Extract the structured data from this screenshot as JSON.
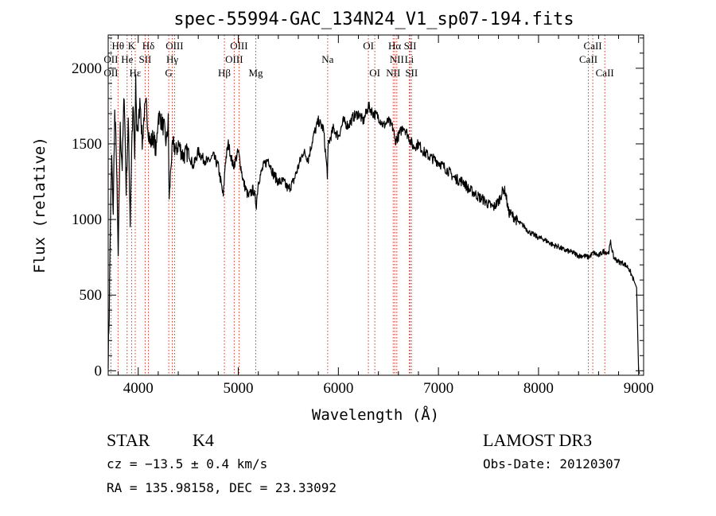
{
  "chart_data": {
    "type": "line",
    "title": "spec-55994-GAC_134N24_V1_sp07-194.fits",
    "xlabel": "Wavelength (Å)",
    "ylabel": "Flux (relative)",
    "xlim": [
      3700,
      9050
    ],
    "ylim": [
      -30,
      2220
    ],
    "x_ticks": [
      4000,
      5000,
      6000,
      7000,
      8000,
      9000
    ],
    "y_ticks": [
      0,
      500,
      1000,
      1500,
      2000
    ],
    "series": [
      {
        "name": "flux",
        "color": "#000000",
        "x": [
          3700,
          3710,
          3720,
          3735,
          3750,
          3765,
          3780,
          3800,
          3820,
          3840,
          3860,
          3880,
          3900,
          3920,
          3935,
          3950,
          3965,
          3975,
          3985,
          4000,
          4020,
          4040,
          4060,
          4080,
          4100,
          4120,
          4150,
          4180,
          4200,
          4230,
          4260,
          4280,
          4300,
          4310,
          4330,
          4350,
          4380,
          4400,
          4450,
          4500,
          4550,
          4600,
          4650,
          4700,
          4750,
          4800,
          4850,
          4870,
          4900,
          4950,
          5000,
          5050,
          5100,
          5150,
          5180,
          5200,
          5250,
          5300,
          5350,
          5400,
          5450,
          5500,
          5550,
          5600,
          5650,
          5700,
          5750,
          5800,
          5850,
          5890,
          5900,
          5950,
          6000,
          6050,
          6100,
          6150,
          6200,
          6250,
          6300,
          6350,
          6400,
          6450,
          6500,
          6550,
          6563,
          6600,
          6650,
          6700,
          6750,
          6800,
          6850,
          6900,
          6950,
          7000,
          7050,
          7100,
          7150,
          7200,
          7250,
          7300,
          7350,
          7400,
          7450,
          7500,
          7550,
          7600,
          7650,
          7670,
          7700,
          7750,
          7800,
          7850,
          7900,
          7950,
          8000,
          8050,
          8100,
          8150,
          8200,
          8250,
          8300,
          8350,
          8400,
          8450,
          8500,
          8550,
          8600,
          8650,
          8700,
          8720,
          8750,
          8800,
          8850,
          8900,
          8950,
          8980,
          9000,
          9010
        ],
        "y": [
          80,
          380,
          900,
          1400,
          1050,
          1700,
          1480,
          750,
          1600,
          1350,
          1850,
          1200,
          1650,
          980,
          1500,
          1750,
          1400,
          1900,
          1620,
          1600,
          1800,
          1500,
          1700,
          1750,
          1600,
          1500,
          1550,
          1450,
          1700,
          1650,
          1600,
          1500,
          1650,
          1120,
          1400,
          1500,
          1450,
          1500,
          1420,
          1450,
          1350,
          1450,
          1400,
          1380,
          1420,
          1350,
          1150,
          1380,
          1500,
          1350,
          1450,
          1250,
          1150,
          1200,
          1100,
          1250,
          1350,
          1400,
          1300,
          1250,
          1250,
          1200,
          1250,
          1350,
          1450,
          1400,
          1550,
          1650,
          1600,
          1300,
          1500,
          1600,
          1550,
          1650,
          1620,
          1680,
          1700,
          1650,
          1750,
          1700,
          1680,
          1620,
          1650,
          1600,
          1520,
          1550,
          1620,
          1550,
          1480,
          1500,
          1450,
          1420,
          1400,
          1380,
          1350,
          1320,
          1280,
          1260,
          1250,
          1200,
          1180,
          1150,
          1130,
          1100,
          1080,
          1120,
          1200,
          1180,
          1050,
          1020,
          980,
          960,
          920,
          900,
          880,
          870,
          850,
          830,
          820,
          800,
          790,
          780,
          760,
          760,
          750,
          780,
          760,
          790,
          780,
          850,
          750,
          720,
          710,
          680,
          600,
          550,
          0,
          -20
        ]
      }
    ],
    "spectral_lines": [
      {
        "label": "Hθ",
        "x": 3798,
        "row": 1
      },
      {
        "label": "K",
        "x": 3934,
        "row": 1
      },
      {
        "label": "Hδ",
        "x": 4102,
        "row": 1
      },
      {
        "label": "OIII",
        "x": 4363,
        "row": 1
      },
      {
        "label": "OIII",
        "x": 5007,
        "row": 1
      },
      {
        "label": "OI",
        "x": 6300,
        "row": 1
      },
      {
        "label": "Hα",
        "x": 6563,
        "row": 1
      },
      {
        "label": "SII",
        "x": 6717,
        "row": 1
      },
      {
        "label": "CaII",
        "x": 8542,
        "row": 1
      },
      {
        "label": "OII",
        "x": 3727,
        "row": 2
      },
      {
        "label": "He",
        "x": 3889,
        "row": 2
      },
      {
        "label": "SII",
        "x": 4069,
        "row": 2
      },
      {
        "label": "Hγ",
        "x": 4340,
        "row": 2
      },
      {
        "label": "OIII",
        "x": 4959,
        "row": 2
      },
      {
        "label": "Na",
        "x": 5893,
        "row": 2
      },
      {
        "label": "NII",
        "x": 6584,
        "row": 2
      },
      {
        "label": "Li",
        "x": 6708,
        "row": 2
      },
      {
        "label": "CaII",
        "x": 8498,
        "row": 2
      },
      {
        "label": "OII",
        "x": 3727,
        "row": 3
      },
      {
        "label": "Hε",
        "x": 3970,
        "row": 3
      },
      {
        "label": "G",
        "x": 4305,
        "row": 3
      },
      {
        "label": "Hβ",
        "x": 4861,
        "row": 3
      },
      {
        "label": "Mg",
        "x": 5175,
        "row": 3
      },
      {
        "label": "OI",
        "x": 6364,
        "row": 3
      },
      {
        "label": "NII",
        "x": 6548,
        "row": 3
      },
      {
        "label": "SII",
        "x": 6731,
        "row": 3
      },
      {
        "label": "CaII",
        "x": 8662,
        "row": 3
      }
    ]
  },
  "info": {
    "object_type": "STAR",
    "subclass": "K4",
    "survey": "LAMOST DR3",
    "redshift": "cz = −13.5 ± 0.4 km/s",
    "obs_date": "Obs-Date: 20120307",
    "coords": "RA = 135.98158, DEC =  23.33092"
  },
  "colors": {
    "line_marker": "#c0392b",
    "spectrum": "#000000",
    "frame": "#000000"
  }
}
